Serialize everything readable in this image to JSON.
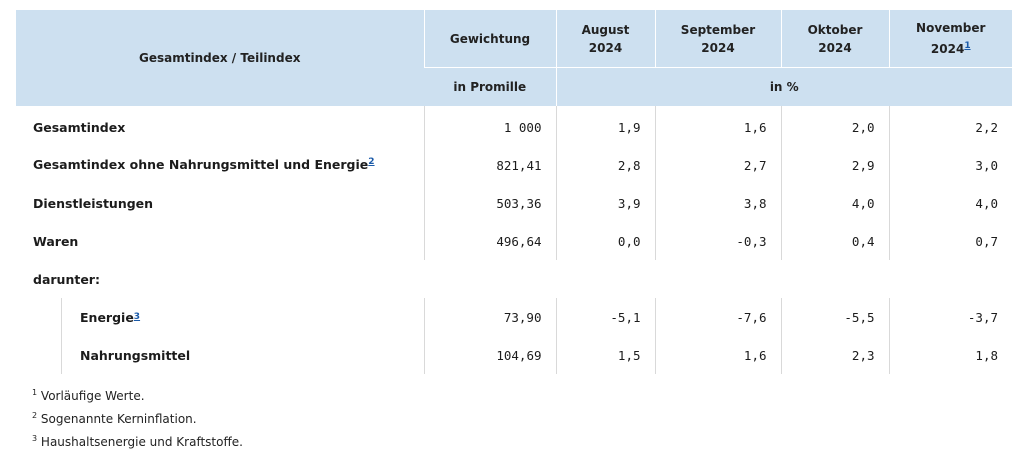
{
  "table": {
    "header": {
      "row_label": "Gesamtindex / Teilindex",
      "weight": "Gewichtung",
      "months": [
        {
          "line1": "August",
          "line2": "2024",
          "footnote": ""
        },
        {
          "line1": "September",
          "line2": "2024",
          "footnote": ""
        },
        {
          "line1": "Oktober",
          "line2": "2024",
          "footnote": ""
        },
        {
          "line1": "November",
          "line2": "2024",
          "footnote": "1"
        }
      ],
      "weight_unit": "in Promille",
      "value_unit": "in %"
    },
    "rows": [
      {
        "label": "Gesamtindex",
        "footnote": "",
        "weight": "1 000",
        "values": [
          "1,9",
          "1,6",
          "2,0",
          "2,2"
        ]
      },
      {
        "label": "Gesamtindex ohne Nahrungsmittel und Energie",
        "footnote": "2",
        "weight": "821,41",
        "values": [
          "2,8",
          "2,7",
          "2,9",
          "3,0"
        ]
      },
      {
        "label": "Dienstleistungen",
        "footnote": "",
        "weight": "503,36",
        "values": [
          "3,9",
          "3,8",
          "4,0",
          "4,0"
        ]
      },
      {
        "label": "Waren",
        "footnote": "",
        "weight": "496,64",
        "values": [
          "0,0",
          "-0,3",
          "0,4",
          "0,7"
        ]
      },
      {
        "label": "darunter:"
      },
      {
        "label": "Energie",
        "footnote": "3",
        "weight": "73,90",
        "values": [
          "-5,1",
          "-7,6",
          "-5,5",
          "-3,7"
        ]
      },
      {
        "label": "Nahrungsmittel",
        "footnote": "",
        "weight": "104,69",
        "values": [
          "1,5",
          "1,6",
          "2,3",
          "1,8"
        ]
      }
    ]
  },
  "footnotes": [
    {
      "mark": "1",
      "text": "Vorläufige Werte."
    },
    {
      "mark": "2",
      "text": "Sogenannte Kerninflation."
    },
    {
      "mark": "3",
      "text": "Haushaltsenergie und Kraftstoffe."
    }
  ]
}
